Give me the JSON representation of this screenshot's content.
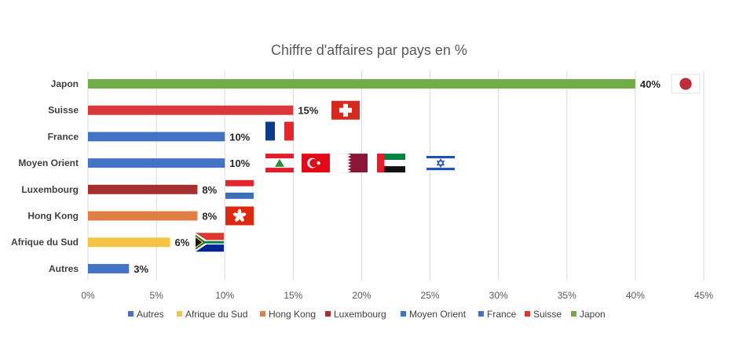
{
  "chart_data": {
    "type": "bar",
    "orientation": "horizontal",
    "title": "Chiffre d'affaires par pays en %",
    "categories": [
      "Japon",
      "Suisse",
      "France",
      "Moyen Orient",
      "Luxembourg",
      "Hong Kong",
      "Afrique du Sud",
      "Autres"
    ],
    "values": [
      40,
      15,
      10,
      10,
      8,
      8,
      6,
      3
    ],
    "data_labels": [
      "40%",
      "15%",
      "10%",
      "10%",
      "8%",
      "8%",
      "6%",
      "3%"
    ],
    "colors": [
      "#70AD47",
      "#D9383A",
      "#4472C4",
      "#4472C4",
      "#A5302F",
      "#E07F45",
      "#F5C342",
      "#4472C4"
    ],
    "xlim": [
      0,
      45
    ],
    "x_ticks": [
      0,
      5,
      10,
      15,
      20,
      25,
      30,
      35,
      40,
      45
    ],
    "x_tick_labels": [
      "0%",
      "5%",
      "10%",
      "15%",
      "20%",
      "25%",
      "30%",
      "35%",
      "40%",
      "45%"
    ],
    "grid": "vertical",
    "legend_position": "bottom",
    "legend": [
      {
        "name": "Autres",
        "color": "#4472C4"
      },
      {
        "name": "Afrique du Sud",
        "color": "#F5C342"
      },
      {
        "name": "Hong Kong",
        "color": "#E07F45"
      },
      {
        "name": "Luxembourg",
        "color": "#A5302F"
      },
      {
        "name": "Moyen Orient",
        "color": "#4472C4"
      },
      {
        "name": "France",
        "color": "#4472C4"
      },
      {
        "name": "Suisse",
        "color": "#D9383A"
      },
      {
        "name": "Japon",
        "color": "#70AD47"
      }
    ],
    "flags": [
      {
        "category": "Japon",
        "icons": [
          "japan-flag-icon"
        ]
      },
      {
        "category": "Suisse",
        "icons": [
          "switzerland-flag-icon"
        ]
      },
      {
        "category": "France",
        "icons": [
          "france-flag-icon"
        ]
      },
      {
        "category": "Moyen Orient",
        "icons": [
          "lebanon-flag-icon",
          "turkey-flag-icon",
          "qatar-flag-icon",
          "uae-flag-icon",
          "israel-flag-icon"
        ]
      },
      {
        "category": "Luxembourg",
        "icons": [
          "luxembourg-flag-icon"
        ]
      },
      {
        "category": "Hong Kong",
        "icons": [
          "hong-kong-flag-icon"
        ]
      },
      {
        "category": "Afrique du Sud",
        "icons": [
          "south-africa-flag-icon"
        ]
      }
    ]
  }
}
